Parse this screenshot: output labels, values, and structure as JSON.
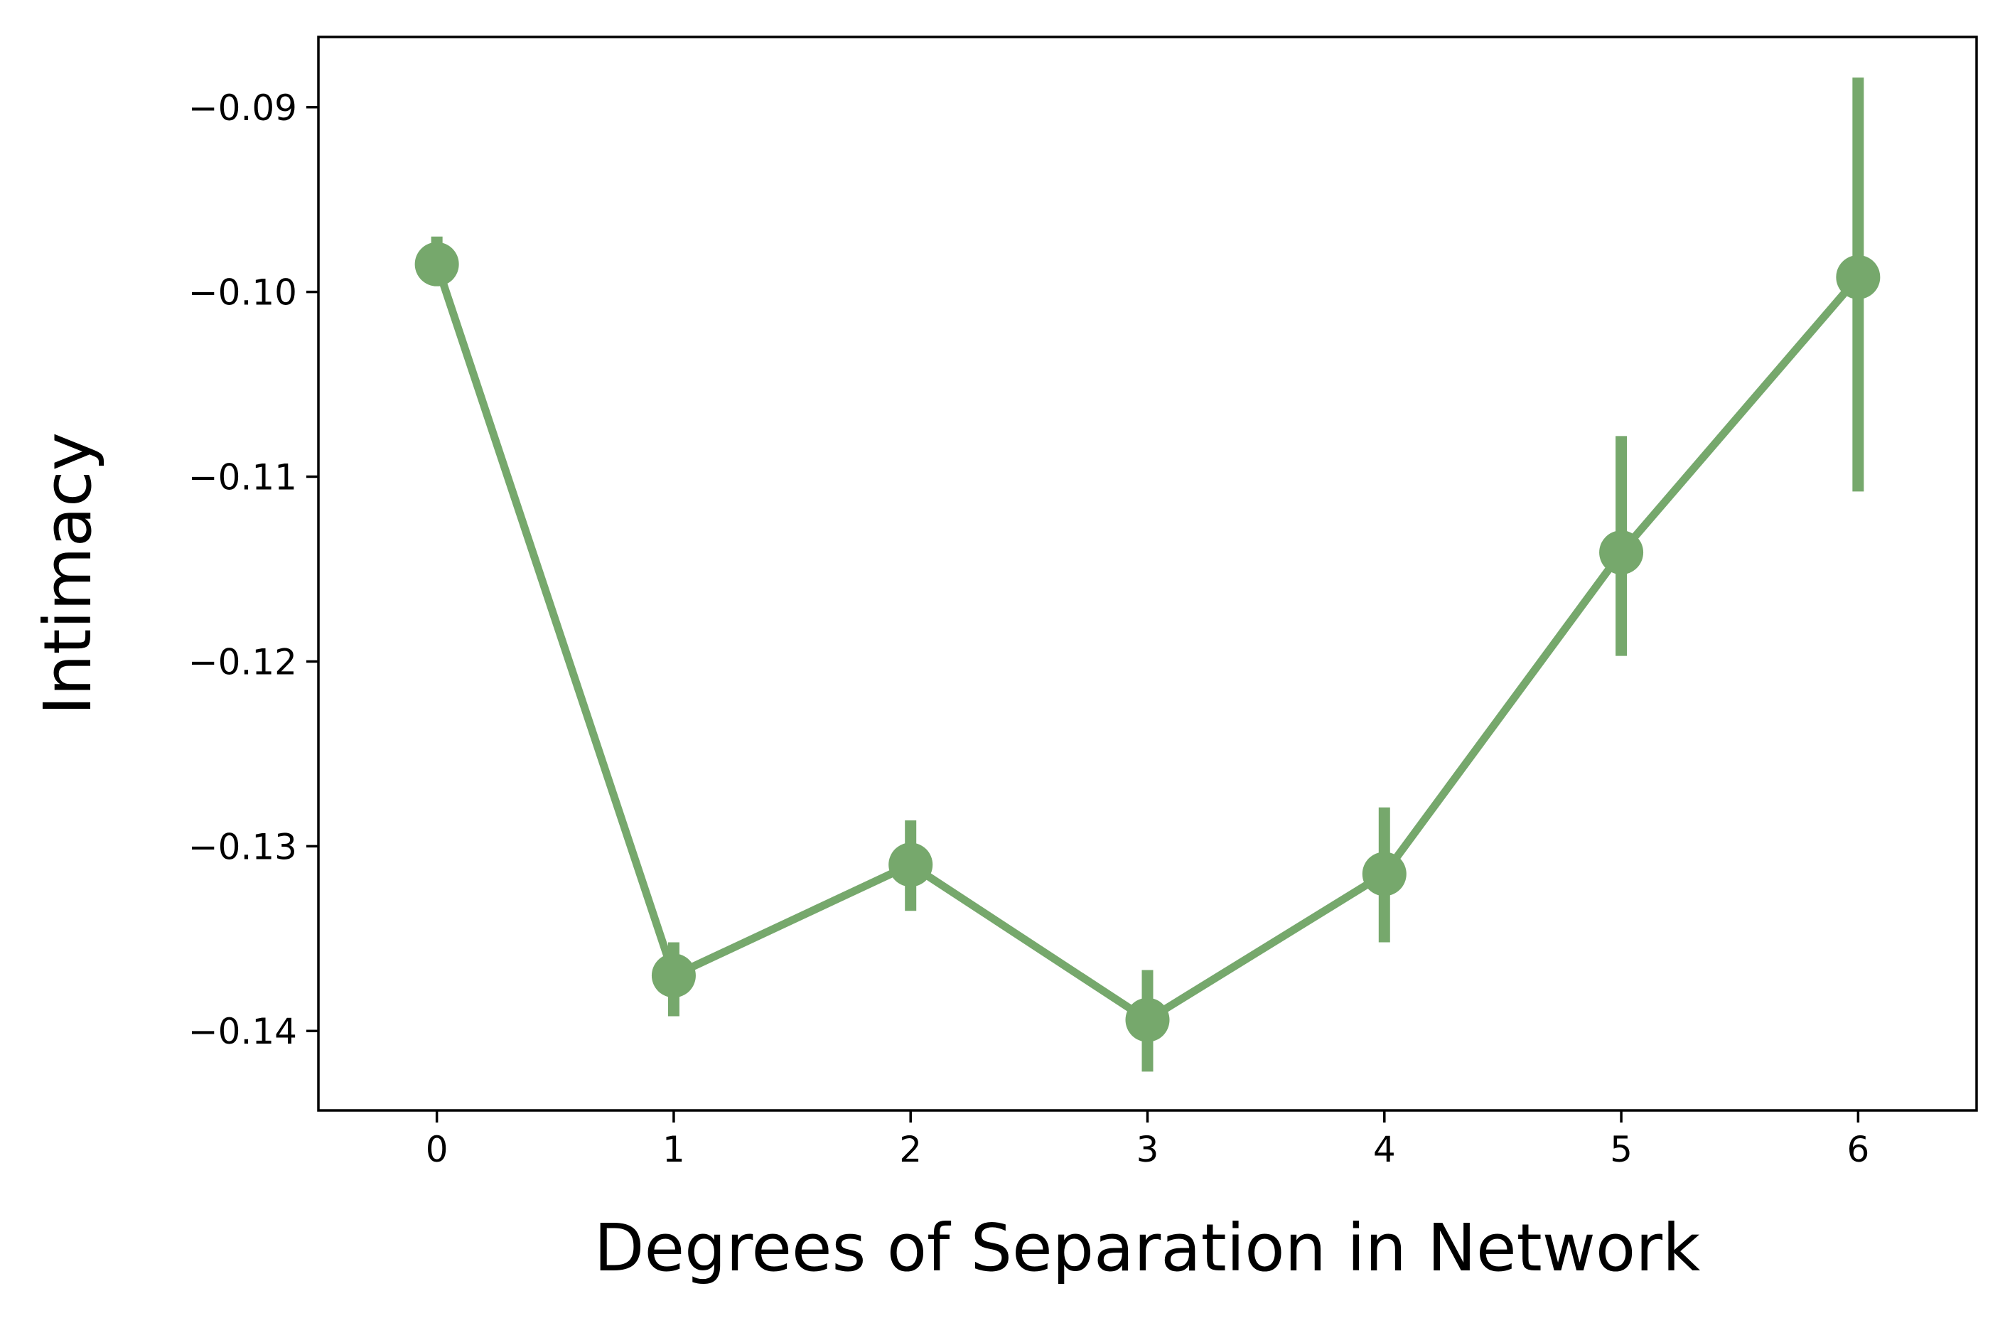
{
  "chart_data": {
    "type": "line",
    "xlabel": "Degrees of Separation in Network",
    "ylabel": "Intimacy",
    "x": [
      0,
      1,
      2,
      3,
      4,
      5,
      6
    ],
    "xticks": [
      "0",
      "1",
      "2",
      "3",
      "4",
      "5",
      "6"
    ],
    "xlim": [
      -0.5,
      6.5
    ],
    "ylim": [
      -0.1443,
      -0.0862
    ],
    "yticks": [
      -0.09,
      -0.1,
      -0.11,
      -0.12,
      -0.13,
      -0.14
    ],
    "ytick_labels": [
      "−0.09",
      "−0.10",
      "−0.11",
      "−0.12",
      "−0.13",
      "−0.14"
    ],
    "series": [
      {
        "values": [
          -0.0985,
          -0.137,
          -0.131,
          -0.1394,
          -0.1315,
          -0.1141,
          -0.0992
        ],
        "err_low": [
          -0.0994,
          -0.1392,
          -0.1335,
          -0.1422,
          -0.1352,
          -0.1197,
          -0.1108
        ],
        "err_high": [
          -0.097,
          -0.1352,
          -0.1286,
          -0.1367,
          -0.1279,
          -0.1078,
          -0.0884
        ],
        "color": "#76a86c"
      }
    ],
    "grid": false,
    "legend": "none"
  }
}
